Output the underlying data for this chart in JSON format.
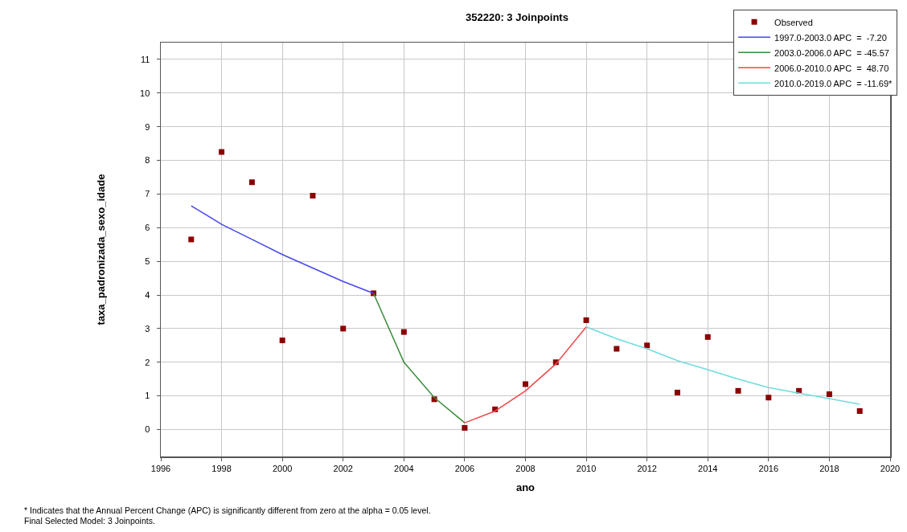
{
  "chart_data": {
    "type": "scatter",
    "title": "352220: 3 Joinpoints",
    "xlabel": "ano",
    "ylabel": "taxa_padronizada_sexo_idade",
    "xlim": [
      1996,
      2020
    ],
    "xticks": [
      1996,
      1998,
      2000,
      2002,
      2004,
      2006,
      2008,
      2010,
      2012,
      2014,
      2016,
      2018,
      2020
    ],
    "ylim": [
      -0.8,
      11.5
    ],
    "yticks": [
      0,
      1,
      2,
      3,
      4,
      5,
      6,
      7,
      8,
      9,
      10,
      11
    ],
    "grid": true,
    "legend": "top right",
    "marker": "square",
    "series": [
      {
        "name": "Observed",
        "color": "#8b0000",
        "x": [
          1997,
          1998,
          1999,
          2000,
          2001,
          2002,
          2003,
          2004,
          2005,
          2006,
          2007,
          2008,
          2009,
          2010,
          2011,
          2012,
          2013,
          2014,
          2015,
          2016,
          2017,
          2018,
          2019
        ],
        "values": [
          5.65,
          8.25,
          7.35,
          2.65,
          6.95,
          3.0,
          4.05,
          2.9,
          0.9,
          0.05,
          0.6,
          1.35,
          2.0,
          3.25,
          2.4,
          2.5,
          1.1,
          2.75,
          1.15,
          0.95,
          1.15,
          1.05,
          0.55
        ]
      },
      {
        "name": "1997.0-2003.0 APC  =  -7.20",
        "type": "line",
        "marker": "none",
        "color": "#4646f0",
        "x": [
          1997,
          1998,
          1999,
          2000,
          2001,
          2002,
          2003
        ],
        "values": [
          6.65,
          6.1,
          5.65,
          5.2,
          4.8,
          4.4,
          4.05
        ]
      },
      {
        "name": "2003.0-2006.0 APC  = -45.57",
        "type": "line",
        "marker": "none",
        "color": "#3a8a3a",
        "x": [
          2003,
          2004,
          2005,
          2006
        ],
        "values": [
          4.05,
          2.0,
          0.95,
          0.2
        ]
      },
      {
        "name": "2006.0-2010.0 APC  =  48.70",
        "type": "line",
        "marker": "none",
        "color": "#f04848",
        "x": [
          2006,
          2007,
          2008,
          2009,
          2010
        ],
        "values": [
          0.2,
          0.55,
          1.15,
          1.95,
          3.05
        ]
      },
      {
        "name": "2010.0-2019.0 APC  = -11.69*",
        "type": "line",
        "marker": "none",
        "color": "#6fdcdc",
        "x": [
          2010,
          2011,
          2012,
          2013,
          2014,
          2015,
          2016,
          2017,
          2018,
          2019
        ],
        "values": [
          3.05,
          2.7,
          2.4,
          2.05,
          1.78,
          1.5,
          1.25,
          1.08,
          0.92,
          0.75
        ]
      }
    ],
    "annotations": [
      "* Indicates that the Annual Percent Change (APC) is significantly different from zero at the alpha = 0.05 level.",
      "Final Selected Model: 3 Joinpoints."
    ]
  }
}
